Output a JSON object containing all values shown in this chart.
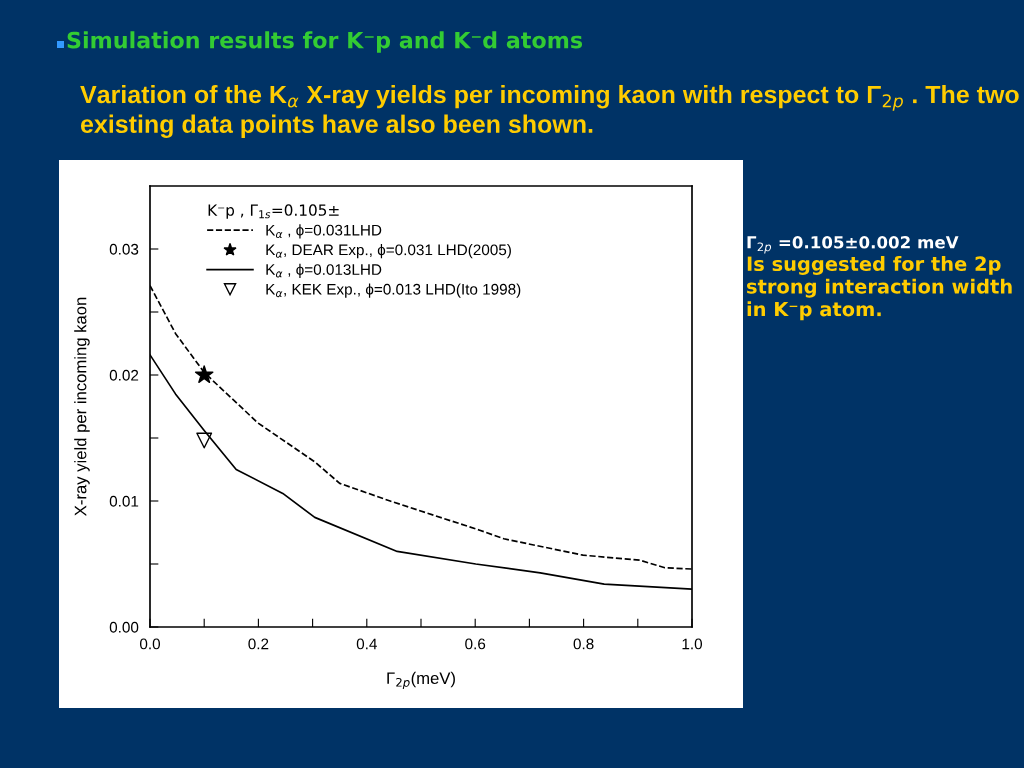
{
  "chart_data": {
    "type": "line",
    "title": "Simulation results for K⁻p and K⁻d atoms",
    "subtitle": "Variation of the K$_{α}$ X-ray yields per incoming kaon with respect to Γ$_{2p}$ . The two existing data points have also been shown.",
    "xlabel": "Γ$_{2p}$(meV)",
    "ylabel": "X-ray yield per incoming kaon",
    "legend_title": "K⁻p , Γ$_{1s}$=0.105±",
    "legend": "top",
    "xlim": [
      0,
      1.0
    ],
    "ylim": [
      0,
      0.035
    ],
    "xticks": [
      {
        "value": 0,
        "label": "0.0"
      },
      {
        "value": 0.1,
        "label": null
      },
      {
        "value": 0.2,
        "label": "0.2"
      },
      {
        "value": 0.3,
        "label": null
      },
      {
        "value": 0.4,
        "label": "0.4"
      },
      {
        "value": 0.5,
        "label": null
      },
      {
        "value": 0.6,
        "label": "0.6"
      },
      {
        "value": 0.7,
        "label": null
      },
      {
        "value": 0.8,
        "label": "0.8"
      },
      {
        "value": 0.9,
        "label": null
      },
      {
        "value": 1.0,
        "label": "1.0"
      }
    ],
    "yticks": [
      {
        "value": 0,
        "label": "0.00"
      },
      {
        "value": 0.005,
        "label": null
      },
      {
        "value": 0.01,
        "label": "0.01"
      },
      {
        "value": 0.015,
        "label": null
      },
      {
        "value": 0.02,
        "label": "0.02"
      },
      {
        "value": 0.025,
        "label": null
      },
      {
        "value": 0.03,
        "label": "0.03"
      }
    ],
    "grid": false,
    "series": [
      {
        "name": "K$_{α}$ , ϕ=0.031LHD",
        "line_style": "dashed",
        "color": "#000000",
        "x": [
          0,
          0.047,
          0.1,
          0.199,
          0.304,
          0.35,
          0.443,
          0.607,
          0.653,
          0.799,
          0.904,
          0.95,
          1.0
        ],
        "values": [
          0.0271,
          0.0233,
          0.0202,
          0.0162,
          0.0131,
          0.0114,
          0.01,
          0.0077,
          0.007,
          0.0057,
          0.0053,
          0.0047,
          0.0046
        ]
      },
      {
        "name": "K$_{α}$, DEAR Exp., ϕ=0.031 LHD(2005)",
        "type": "scatter",
        "marker": "star",
        "color": "#000000",
        "x": [
          0.1
        ],
        "values": [
          0.02
        ]
      },
      {
        "name": "K$_{α}$ , ϕ=0.013LHD",
        "line_style": "solid",
        "color": "#000000",
        "x": [
          0,
          0.047,
          0.1,
          0.159,
          0.245,
          0.304,
          0.456,
          0.601,
          0.72,
          0.838,
          1.0
        ],
        "values": [
          0.0216,
          0.0185,
          0.0156,
          0.0125,
          0.0106,
          0.0087,
          0.006,
          0.005,
          0.0043,
          0.0034,
          0.003
        ]
      },
      {
        "name": "K$_{α}$, KEK Exp., ϕ=0.013 LHD(Ito 1998)",
        "type": "scatter",
        "marker": "triangle",
        "color": "#000000",
        "x": [
          0.1
        ],
        "values": [
          0.0148
        ]
      }
    ],
    "annotations": [
      "Γ$_{2p}$ =0.105±0.002 meV",
      "Is suggested for the 2p strong interaction width in K⁻p atom."
    ]
  }
}
